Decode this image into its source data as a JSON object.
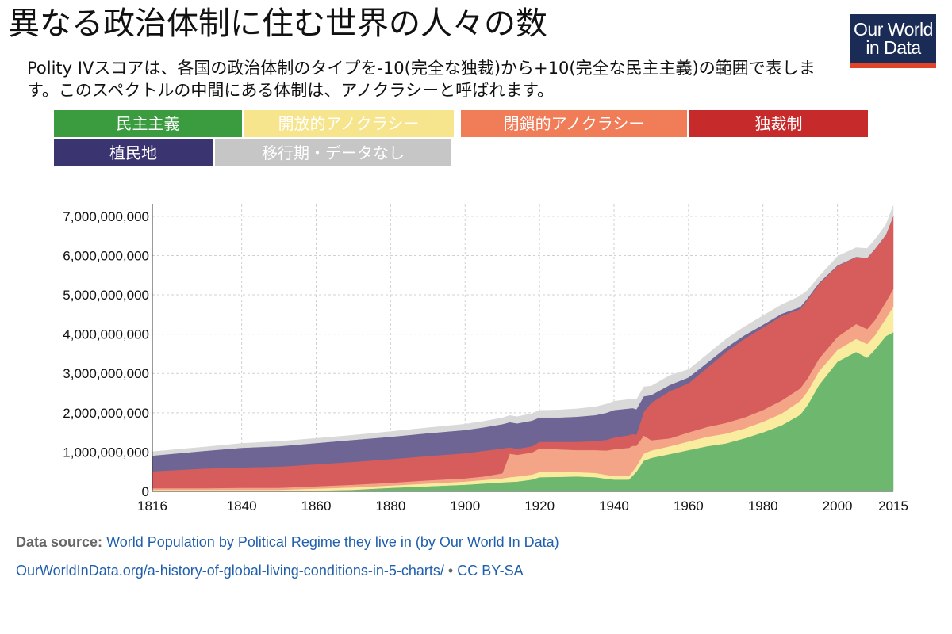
{
  "header": {
    "title": "異なる政治体制に住む世界の人々の数",
    "subtitle": "Polity IVスコアは、各国の政治体制のタイプを-10(完全な独裁)から+10(完全な民主主義)の範囲で表します。このスペクトルの中間にある体制は、アノクラシーと呼ばれます。",
    "logo_line1": "Our World",
    "logo_line2": "in Data"
  },
  "legend": [
    {
      "label": "民主主義",
      "color": "#3a9b3f"
    },
    {
      "label": "開放的アノクラシー",
      "color": "#f6e58d"
    },
    {
      "label": "閉鎖的アノクラシー",
      "color": "#f07c58"
    },
    {
      "label": "独裁制",
      "color": "#c62a2a"
    },
    {
      "label": "植民地",
      "color": "#3a3470"
    },
    {
      "label": "移行期・データなし",
      "color": "#c6c6c6"
    }
  ],
  "chart_data": {
    "type": "area",
    "stacked": true,
    "x": [
      1816,
      1830,
      1840,
      1850,
      1860,
      1870,
      1880,
      1890,
      1900,
      1905,
      1910,
      1912,
      1914,
      1918,
      1920,
      1925,
      1930,
      1935,
      1938,
      1940,
      1944,
      1945,
      1946,
      1948,
      1950,
      1955,
      1960,
      1965,
      1970,
      1975,
      1980,
      1985,
      1990,
      1992,
      1995,
      2000,
      2005,
      2008,
      2010,
      2013,
      2015
    ],
    "series": [
      {
        "name": "民主主義",
        "color": "#6db76f",
        "values": [
          0,
          0,
          0,
          0,
          20,
          40,
          90,
          130,
          170,
          200,
          230,
          240,
          250,
          300,
          360,
          370,
          380,
          360,
          320,
          300,
          300,
          400,
          500,
          780,
          850,
          950,
          1050,
          1150,
          1220,
          1350,
          1500,
          1680,
          1950,
          2200,
          2700,
          3300,
          3550,
          3400,
          3600,
          3950,
          4050
        ]
      },
      {
        "name": "開放的アノクラシー",
        "color": "#f9ec9e",
        "values": [
          40,
          40,
          40,
          40,
          50,
          60,
          60,
          70,
          80,
          90,
          100,
          120,
          130,
          130,
          130,
          120,
          110,
          110,
          100,
          90,
          90,
          110,
          140,
          180,
          190,
          200,
          220,
          240,
          250,
          250,
          270,
          300,
          350,
          350,
          350,
          300,
          330,
          350,
          360,
          450,
          650
        ]
      },
      {
        "name": "閉鎖的アノクラシー",
        "color": "#f4a587",
        "values": [
          40,
          40,
          50,
          50,
          60,
          70,
          70,
          80,
          80,
          90,
          130,
          600,
          550,
          560,
          600,
          580,
          560,
          580,
          620,
          680,
          720,
          650,
          520,
          460,
          260,
          200,
          230,
          250,
          270,
          280,
          300,
          330,
          320,
          330,
          320,
          330,
          380,
          380,
          390,
          420,
          450
        ]
      },
      {
        "name": "独裁制",
        "color": "#d75d5d",
        "values": [
          430,
          500,
          520,
          540,
          560,
          580,
          600,
          620,
          640,
          650,
          630,
          160,
          150,
          160,
          170,
          190,
          210,
          230,
          270,
          300,
          320,
          300,
          280,
          600,
          950,
          1200,
          1250,
          1500,
          1800,
          2000,
          2100,
          2150,
          2020,
          2000,
          1900,
          1800,
          1700,
          1800,
          1800,
          1700,
          1850
        ]
      },
      {
        "name": "植民地",
        "color": "#6e6595",
        "values": [
          400,
          450,
          500,
          520,
          540,
          560,
          570,
          580,
          590,
          600,
          620,
          640,
          650,
          650,
          620,
          620,
          640,
          660,
          690,
          700,
          680,
          660,
          650,
          400,
          200,
          160,
          150,
          130,
          110,
          90,
          70,
          60,
          50,
          40,
          30,
          20,
          10,
          10,
          10,
          10,
          10
        ]
      },
      {
        "name": "移行期・データなし",
        "color": "#d9d9d9",
        "values": [
          100,
          100,
          110,
          120,
          120,
          120,
          130,
          140,
          150,
          150,
          160,
          170,
          170,
          180,
          180,
          190,
          200,
          210,
          220,
          220,
          230,
          230,
          240,
          240,
          230,
          240,
          200,
          210,
          220,
          220,
          230,
          230,
          280,
          200,
          160,
          230,
          230,
          240,
          240,
          250,
          260
        ]
      }
    ],
    "x_ticks": [
      1816,
      1840,
      1860,
      1880,
      1900,
      1920,
      1940,
      1960,
      1980,
      2000,
      2015
    ],
    "y_ticks": [
      {
        "value": 0,
        "label": "0"
      },
      {
        "value": 1000,
        "label": "1,000,000,000"
      },
      {
        "value": 2000,
        "label": "2,000,000,000"
      },
      {
        "value": 3000,
        "label": "3,000,000,000"
      },
      {
        "value": 4000,
        "label": "4,000,000,000"
      },
      {
        "value": 5000,
        "label": "5,000,000,000"
      },
      {
        "value": 6000,
        "label": "6,000,000,000"
      },
      {
        "value": 7000,
        "label": "7,000,000,000"
      }
    ],
    "y_unit_multiplier": 1000000,
    "xlim": [
      1816,
      2015
    ],
    "ylim": [
      0,
      7300
    ],
    "grid": true
  },
  "footer": {
    "source_label": "Data source:",
    "source_text": "World Population by Political Regime they live in (by Our World In Data)",
    "url": "OurWorldInData.org/a-history-of-global-living-conditions-in-5-charts/",
    "separator": "•",
    "license": "CC BY-SA"
  }
}
